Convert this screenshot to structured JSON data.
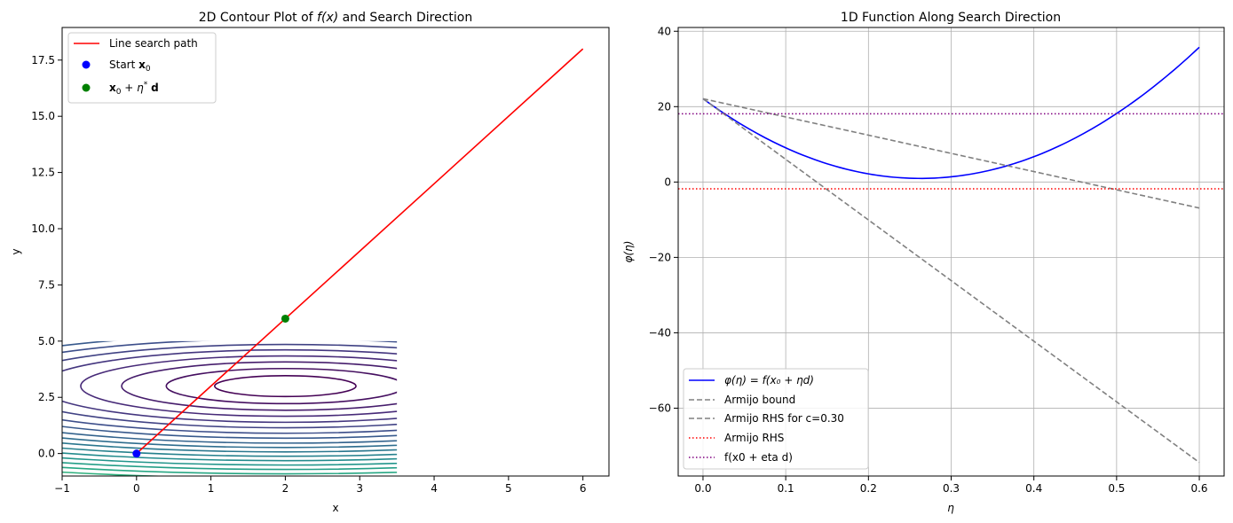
{
  "chart_data": [
    {
      "type": "contour",
      "title_pre": "2D Contour Plot of ",
      "title_math": "f(x)",
      "title_post": " and Search Direction",
      "xlabel": "x",
      "ylabel": "y",
      "xlim": [
        -1,
        6.35
      ],
      "ylim": [
        -1,
        18.95
      ],
      "xticks": [
        -1,
        0,
        1,
        2,
        3,
        4,
        5,
        6
      ],
      "xtick_labels": [
        "−1",
        "0",
        "1",
        "2",
        "3",
        "4",
        "5",
        "6"
      ],
      "yticks": [
        0,
        2.5,
        5,
        7.5,
        10,
        12.5,
        15,
        17.5
      ],
      "ytick_labels": [
        "0.0",
        "2.5",
        "5.0",
        "7.5",
        "10.0",
        "12.5",
        "15.0",
        "17.5"
      ],
      "grid": false,
      "contour": {
        "center": [
          2,
          3
        ],
        "x_range": [
          -1,
          3.5
        ],
        "y_range": [
          -1,
          5
        ],
        "y_scale": 2.05,
        "colormap": "viridis",
        "levels": [
          0.95,
          1.6,
          2.2,
          2.75,
          3.3,
          3.8,
          4.3,
          4.75,
          5.2,
          5.6,
          6.0,
          6.4,
          6.8,
          7.2,
          7.6,
          8.0,
          8.4,
          8.8,
          9.2,
          9.6,
          10.0,
          10.4,
          10.8,
          11.2,
          11.6,
          12.0
        ]
      },
      "series": [
        {
          "name": "Line search path",
          "kind": "line",
          "color": "#ff0000",
          "x": [
            0,
            6
          ],
          "y": [
            0,
            18
          ]
        },
        {
          "name": "Start",
          "name_math": "x",
          "name_sub": "0",
          "kind": "point",
          "color": "#0000ff",
          "x": [
            0
          ],
          "y": [
            0
          ]
        },
        {
          "name": "x0 + eta* d",
          "kind": "point",
          "color": "#008000",
          "x": [
            2
          ],
          "y": [
            6
          ]
        }
      ],
      "legend": "upper-left"
    },
    {
      "type": "line",
      "title": "1D Function Along Search Direction",
      "xlabel": "η",
      "ylabel": "φ(η)",
      "xlim": [
        -0.03,
        0.63
      ],
      "ylim": [
        -78,
        41
      ],
      "xticks": [
        0,
        0.1,
        0.2,
        0.3,
        0.4,
        0.5,
        0.6
      ],
      "xtick_labels": [
        "0.0",
        "0.1",
        "0.2",
        "0.3",
        "0.4",
        "0.5",
        "0.6"
      ],
      "yticks": [
        -60,
        -40,
        -20,
        0,
        20,
        40
      ],
      "ytick_labels": [
        "−60",
        "−40",
        "−20",
        "0",
        "20",
        "40"
      ],
      "grid": true,
      "series": [
        {
          "name": "φ(η) = f(x₀ + ηd)",
          "kind": "curve",
          "color": "#0000ff",
          "style": "solid",
          "fn": {
            "a": 306.1,
            "b": -160.9,
            "c": 22.1
          },
          "x_range": [
            0,
            0.6
          ]
        },
        {
          "name": "Armijo bound",
          "kind": "line",
          "color": "#808080",
          "style": "dashed",
          "x": [
            0,
            0.6
          ],
          "y": [
            22.1,
            -74.4
          ]
        },
        {
          "name": "Armijo RHS for c=0.30",
          "kind": "line",
          "color": "#808080",
          "style": "dashed",
          "x": [
            0,
            0.6
          ],
          "y": [
            22.1,
            -6.9
          ]
        },
        {
          "name": "Armijo RHS",
          "kind": "hline",
          "color": "#ff0000",
          "style": "dotted",
          "y": -1.8
        },
        {
          "name": "f(x0 + eta d)",
          "kind": "hline",
          "color": "#800080",
          "style": "dotted",
          "y": 18.1
        }
      ],
      "legend": "lower-left"
    }
  ]
}
